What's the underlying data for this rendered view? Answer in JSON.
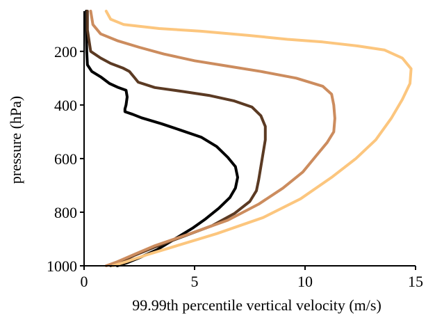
{
  "chart_data": {
    "type": "line",
    "title": "",
    "xlabel": "99.99th percentile vertical velocity (m/s)",
    "ylabel": "pressure (hPa)",
    "xlim": [
      0,
      15
    ],
    "ylim": [
      1000,
      50
    ],
    "y_inverted": true,
    "grid": false,
    "legend": "none",
    "x_ticks": [
      0,
      5,
      10,
      15
    ],
    "x_tick_labels": [
      "0",
      "5",
      "10",
      "15"
    ],
    "y_ticks": [
      200,
      400,
      600,
      800,
      1000
    ],
    "y_tick_labels": [
      "200",
      "400",
      "600",
      "800",
      "1000"
    ],
    "series": [
      {
        "color": "#000000",
        "points": [
          [
            0.1,
            50
          ],
          [
            0.1,
            120
          ],
          [
            0.12,
            200
          ],
          [
            0.15,
            250
          ],
          [
            0.35,
            275
          ],
          [
            0.75,
            295
          ],
          [
            1.15,
            320
          ],
          [
            1.55,
            335
          ],
          [
            1.9,
            345
          ],
          [
            1.95,
            370
          ],
          [
            1.9,
            400
          ],
          [
            1.85,
            415
          ],
          [
            1.85,
            425
          ],
          [
            2.2,
            435
          ],
          [
            2.6,
            448
          ],
          [
            3.5,
            470
          ],
          [
            4.3,
            492
          ],
          [
            5.3,
            520
          ],
          [
            6.0,
            555
          ],
          [
            6.5,
            595
          ],
          [
            6.85,
            630
          ],
          [
            6.95,
            670
          ],
          [
            6.85,
            710
          ],
          [
            6.6,
            745
          ],
          [
            6.1,
            785
          ],
          [
            5.5,
            825
          ],
          [
            4.9,
            860
          ],
          [
            4.1,
            900
          ],
          [
            3.3,
            940
          ],
          [
            2.5,
            970
          ],
          [
            1.9,
            990
          ],
          [
            1.5,
            1000
          ]
        ]
      },
      {
        "color": "#5b3a23",
        "points": [
          [
            0.15,
            50
          ],
          [
            0.15,
            120
          ],
          [
            0.3,
            200
          ],
          [
            0.75,
            225
          ],
          [
            1.2,
            245
          ],
          [
            1.75,
            262
          ],
          [
            2.05,
            275
          ],
          [
            2.25,
            295
          ],
          [
            2.45,
            315
          ],
          [
            3.2,
            335
          ],
          [
            4.5,
            350
          ],
          [
            5.7,
            365
          ],
          [
            6.8,
            385
          ],
          [
            7.6,
            408
          ],
          [
            8.0,
            440
          ],
          [
            8.2,
            480
          ],
          [
            8.2,
            530
          ],
          [
            8.1,
            580
          ],
          [
            8.0,
            630
          ],
          [
            7.9,
            680
          ],
          [
            7.8,
            720
          ],
          [
            7.5,
            760
          ],
          [
            6.8,
            805
          ],
          [
            5.8,
            850
          ],
          [
            4.5,
            890
          ],
          [
            3.2,
            930
          ],
          [
            2.3,
            960
          ],
          [
            1.8,
            980
          ],
          [
            1.4,
            995
          ],
          [
            1.2,
            1000
          ]
        ]
      },
      {
        "color": "#cc8c5e",
        "points": [
          [
            0.3,
            50
          ],
          [
            0.4,
            100
          ],
          [
            0.75,
            135
          ],
          [
            1.5,
            160
          ],
          [
            2.5,
            185
          ],
          [
            3.6,
            210
          ],
          [
            5.0,
            235
          ],
          [
            6.5,
            255
          ],
          [
            8.0,
            275
          ],
          [
            9.6,
            300
          ],
          [
            10.8,
            330
          ],
          [
            11.2,
            360
          ],
          [
            11.3,
            400
          ],
          [
            11.35,
            450
          ],
          [
            11.3,
            500
          ],
          [
            11.0,
            540
          ],
          [
            10.5,
            590
          ],
          [
            9.9,
            650
          ],
          [
            9.0,
            710
          ],
          [
            7.9,
            770
          ],
          [
            6.5,
            830
          ],
          [
            4.8,
            880
          ],
          [
            3.2,
            925
          ],
          [
            2.2,
            960
          ],
          [
            1.5,
            985
          ],
          [
            1.0,
            1000
          ]
        ]
      },
      {
        "color": "#fcc67e",
        "points": [
          [
            1.0,
            50
          ],
          [
            1.2,
            80
          ],
          [
            1.8,
            100
          ],
          [
            3.4,
            115
          ],
          [
            5.3,
            125
          ],
          [
            7.4,
            140
          ],
          [
            9.2,
            155
          ],
          [
            10.8,
            165
          ],
          [
            12.4,
            180
          ],
          [
            13.6,
            195
          ],
          [
            14.4,
            225
          ],
          [
            14.8,
            265
          ],
          [
            14.75,
            320
          ],
          [
            14.4,
            380
          ],
          [
            13.9,
            450
          ],
          [
            13.2,
            530
          ],
          [
            12.3,
            600
          ],
          [
            11.2,
            670
          ],
          [
            9.8,
            750
          ],
          [
            8.1,
            820
          ],
          [
            6.0,
            880
          ],
          [
            4.2,
            925
          ],
          [
            2.8,
            960
          ],
          [
            1.9,
            985
          ],
          [
            1.3,
            1000
          ]
        ]
      }
    ]
  }
}
